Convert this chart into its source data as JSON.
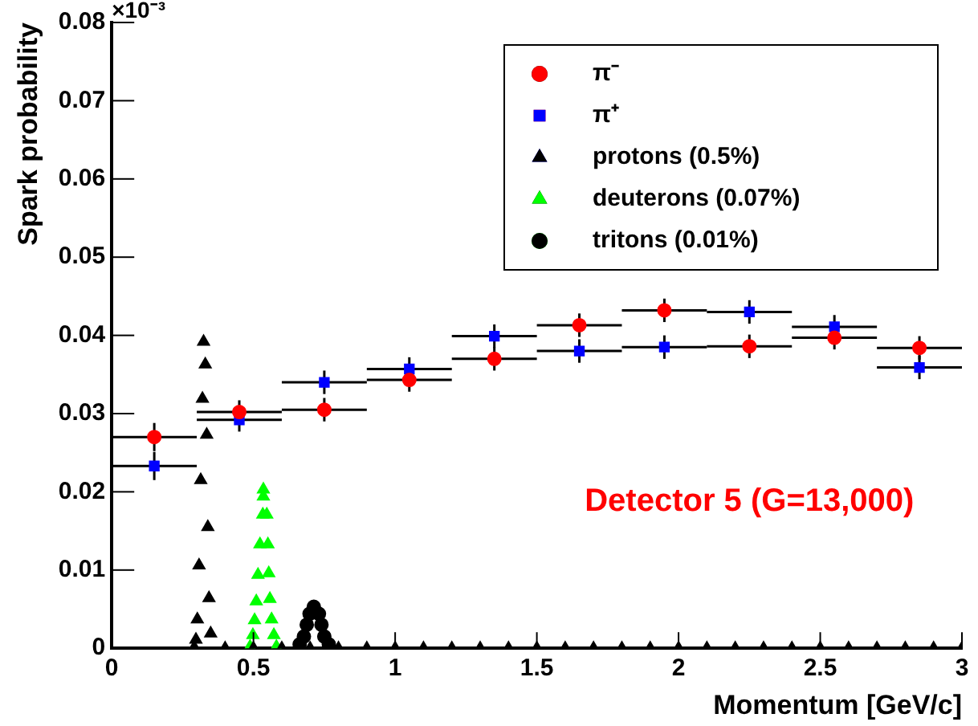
{
  "chart_data": {
    "type": "scatter",
    "xlabel": "Momentum [GeV/c]",
    "ylabel": "Spark probability",
    "xlim": [
      0,
      3
    ],
    "xticks": [
      0,
      0.5,
      1,
      1.5,
      2,
      2.5,
      3
    ],
    "ylim": [
      0,
      0.08
    ],
    "yticks": [
      0,
      0.01,
      0.02,
      0.03,
      0.04,
      0.05,
      0.06,
      0.07,
      0.08
    ],
    "grid": false,
    "legend": "top right",
    "annotations": [
      "×10⁻³",
      "Detector 5 (G=13,000)"
    ],
    "series": [
      {
        "name": "π⁻",
        "color": "#ff0000",
        "marker": "circle",
        "x": [
          0.15,
          0.45,
          0.75,
          1.05,
          1.35,
          1.65,
          1.95,
          2.25,
          2.55,
          2.85
        ],
        "values": [
          0.027,
          0.0302,
          0.0305,
          0.0343,
          0.037,
          0.0413,
          0.0432,
          0.0386,
          0.0397,
          0.0384
        ],
        "errors": [
          0.0018,
          0.0015,
          0.0015,
          0.0015,
          0.0015,
          0.0015,
          0.0015,
          0.0015,
          0.0015,
          0.0015
        ],
        "xerrors": [
          0.15,
          0.15,
          0.15,
          0.15,
          0.15,
          0.15,
          0.15,
          0.15,
          0.15,
          0.15
        ]
      },
      {
        "name": "π⁺",
        "color": "#0000ff",
        "marker": "square",
        "x": [
          0.15,
          0.45,
          0.75,
          1.05,
          1.35,
          1.65,
          1.95,
          2.25,
          2.55,
          2.85
        ],
        "values": [
          0.0233,
          0.0292,
          0.034,
          0.0357,
          0.0399,
          0.038,
          0.0385,
          0.043,
          0.0411,
          0.0359
        ],
        "errors": [
          0.0018,
          0.0015,
          0.0015,
          0.0015,
          0.0015,
          0.0015,
          0.0015,
          0.0015,
          0.0015,
          0.0015
        ],
        "xerrors": [
          0.15,
          0.15,
          0.15,
          0.15,
          0.15,
          0.15,
          0.15,
          0.15,
          0.15,
          0.15
        ]
      },
      {
        "name": "protons (0.5%)",
        "color": "#000000",
        "marker": "triangle",
        "x": [
          0.291,
          0.297,
          0.302,
          0.308,
          0.314,
          0.32,
          0.324,
          0.33,
          0.335,
          0.339,
          0.343,
          0.349,
          0.4,
          0.5,
          0.6,
          0.7,
          0.8,
          0.9,
          1.0,
          1.1,
          1.2,
          1.3,
          1.4,
          1.5,
          1.6,
          1.7,
          1.8,
          1.9,
          2.0,
          2.1,
          2.2,
          2.3,
          2.4,
          2.5,
          2.6,
          2.7,
          2.8,
          2.9,
          3.0
        ],
        "values": [
          0.0001,
          0.0011,
          0.0037,
          0.0106,
          0.0215,
          0.0319,
          0.0392,
          0.0363,
          0.0273,
          0.0155,
          0.0064,
          0.0019,
          0,
          0,
          0,
          0,
          0,
          0,
          0,
          0,
          0,
          0,
          0,
          0,
          0,
          0,
          0,
          0,
          0,
          0,
          0,
          0,
          0,
          0,
          0,
          0,
          0,
          0,
          0
        ]
      },
      {
        "name": "deuterons (0.07%)",
        "color": "#00ff00",
        "marker": "triangle",
        "x": [
          0.488,
          0.498,
          0.504,
          0.51,
          0.516,
          0.523,
          0.533,
          0.535,
          0.535,
          0.547,
          0.551,
          0.554,
          0.558,
          0.564,
          0.572,
          0.581
        ],
        "values": [
          0.0002,
          0.0017,
          0.0036,
          0.006,
          0.0094,
          0.0133,
          0.0171,
          0.0194,
          0.0203,
          0.0171,
          0.0133,
          0.0096,
          0.0063,
          0.0037,
          0.0017,
          0.0002
        ]
      },
      {
        "name": "tritons (0.01%)",
        "color": "#000000",
        "marker": "circle",
        "x": [
          0.663,
          0.678,
          0.688,
          0.698,
          0.713,
          0.731,
          0.74,
          0.75,
          0.766
        ],
        "values": [
          0.0005,
          0.0015,
          0.003,
          0.0044,
          0.0053,
          0.0044,
          0.003,
          0.0015,
          0.0005
        ]
      }
    ]
  }
}
